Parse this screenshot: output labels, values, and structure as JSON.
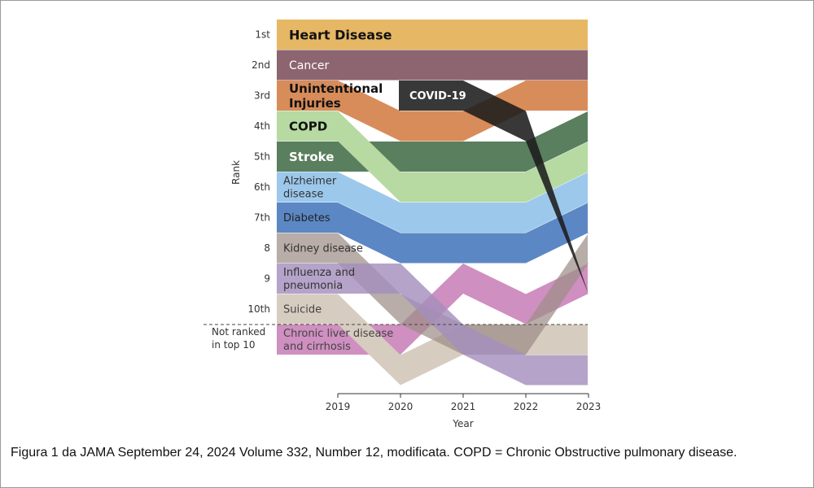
{
  "caption": "Figura 1 da JAMA September 24, 2024 Volume 332, Number 12, modificata. COPD = Chronic Obstructive pulmonary disease.",
  "chart_data": {
    "type": "bump",
    "title": "",
    "xlabel": "Year",
    "ylabel": "Rank",
    "x": [
      2019,
      2020,
      2021,
      2022,
      2023
    ],
    "rank_labels": [
      "1st",
      "2nd",
      "3rd",
      "4th",
      "5th",
      "6th",
      "7th",
      "8",
      "9",
      "10th"
    ],
    "not_ranked_label": [
      "Not ranked",
      "in top 10"
    ],
    "not_ranked_value": 11,
    "series": [
      {
        "key": "heart",
        "name": [
          "Heart Disease"
        ],
        "ranks": [
          1,
          1,
          1,
          1,
          1
        ],
        "color": "#e6b865",
        "label_color": "#111111",
        "label_size": 16,
        "label_bold": true
      },
      {
        "key": "cancer",
        "name": [
          "Cancer"
        ],
        "ranks": [
          2,
          2,
          2,
          2,
          2
        ],
        "color": "#8c6570",
        "label_color": "#ffffff",
        "label_size": 14,
        "label_bold": false
      },
      {
        "key": "injuries",
        "name": [
          "Unintentional",
          "Injuries"
        ],
        "ranks": [
          3,
          4,
          4,
          3,
          3
        ],
        "color": "#d88c5a",
        "label_color": "#111111",
        "label_size": 15,
        "label_bold": true
      },
      {
        "key": "stroke",
        "name": [
          "Stroke"
        ],
        "ranks": [
          5,
          5,
          5,
          5,
          4
        ],
        "color": "#5a7f5e",
        "label_color": "#ffffff",
        "label_size": 15,
        "label_bold": true
      },
      {
        "key": "copd",
        "name": [
          "COPD"
        ],
        "ranks": [
          4,
          6,
          6,
          6,
          5
        ],
        "color": "#b7d9a2",
        "label_color": "#111111",
        "label_size": 15,
        "label_bold": true
      },
      {
        "key": "alzheimer",
        "name": [
          "Alzheimer",
          "disease"
        ],
        "ranks": [
          6,
          7,
          7,
          7,
          6
        ],
        "color": "#9cc8ec",
        "label_color": "#333333",
        "label_size": 13,
        "label_bold": false
      },
      {
        "key": "diabetes",
        "name": [
          "Diabetes"
        ],
        "ranks": [
          7,
          8,
          8,
          8,
          7
        ],
        "color": "#5b87c4",
        "label_color": "#222222",
        "label_size": 13,
        "label_bold": false
      },
      {
        "key": "liver",
        "name": [
          "Chronic liver disease",
          "and cirrhosis"
        ],
        "ranks": [
          11,
          11,
          9,
          10,
          9
        ],
        "color": "#cf8fc0",
        "label_color": "#444444",
        "label_size": 13,
        "label_bold": false
      },
      {
        "key": "suicide",
        "name": [
          "Suicide"
        ],
        "ranks": [
          10,
          12,
          11,
          11,
          11
        ],
        "color": "#d7ccc0",
        "label_color": "#444444",
        "label_size": 13,
        "label_bold": false
      },
      {
        "key": "kidney",
        "name": [
          "Kidney disease"
        ],
        "ranks": [
          8,
          10,
          11,
          11,
          8
        ],
        "color": "#9d8d86",
        "label_color": "#333333",
        "label_size": 13,
        "label_bold": false,
        "alpha": 0.72
      },
      {
        "key": "influenza",
        "name": [
          "Influenza and",
          "pneumonia"
        ],
        "ranks": [
          9,
          9,
          11,
          12,
          12
        ],
        "color": "#a58fbd",
        "label_color": "#333333",
        "label_size": 13,
        "label_bold": false,
        "alpha": 0.82
      },
      {
        "key": "covid",
        "name": [
          "COVID-19"
        ],
        "ranks": [
          null,
          3,
          3,
          4,
          10
        ],
        "color": "#1c1c1c",
        "label_color": "#ffffff",
        "label_size": 13,
        "label_bold": true,
        "alpha": 0.88
      }
    ]
  }
}
